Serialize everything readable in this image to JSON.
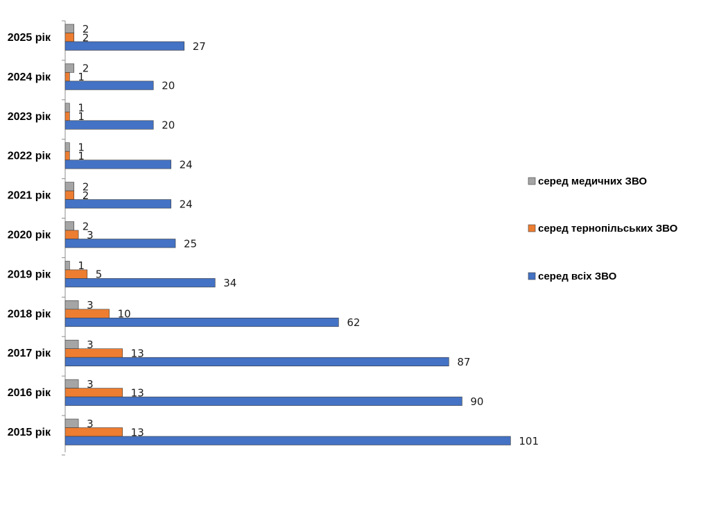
{
  "chart_data": {
    "type": "bar",
    "orientation": "horizontal",
    "categories": [
      "2025 рік",
      "2024 рік",
      "2023 рік",
      "2022 рік",
      "2021 рік",
      "2020 рік",
      "2019 рік",
      "2018 рік",
      "2017 рік",
      "2016 рік",
      "2015 рік"
    ],
    "series": [
      {
        "name": "серед медичних ЗВО",
        "color": "#a5a5a5",
        "values": [
          2,
          2,
          1,
          1,
          2,
          2,
          1,
          3,
          3,
          3,
          3
        ]
      },
      {
        "name": "серед тернопільських ЗВО",
        "color": "#ed7d31",
        "values": [
          2,
          1,
          1,
          1,
          2,
          3,
          5,
          10,
          13,
          13,
          13
        ]
      },
      {
        "name": "серед всіх ЗВО",
        "color": "#4472c4",
        "values": [
          27,
          20,
          20,
          24,
          24,
          25,
          34,
          62,
          87,
          90,
          101
        ]
      }
    ],
    "xlim": [
      0,
      101
    ],
    "grid": false,
    "data_labels": true,
    "legend_position": "right"
  }
}
